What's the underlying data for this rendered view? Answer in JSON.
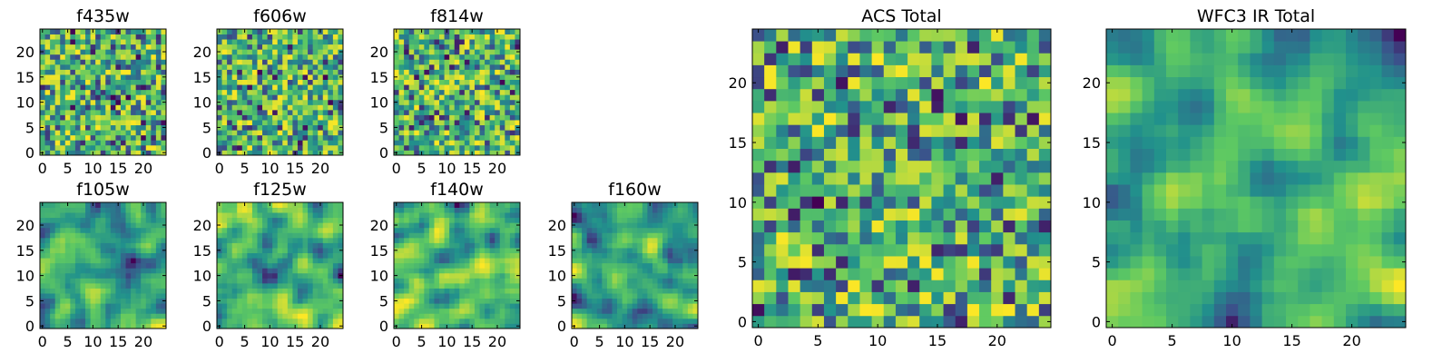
{
  "chart_data": [
    {
      "type": "heatmap",
      "title": "f435w",
      "xticks": [
        0,
        5,
        10,
        15,
        20
      ],
      "yticks": [
        0,
        5,
        10,
        15,
        20
      ],
      "xlim": [
        -0.5,
        24.5
      ],
      "ylim": [
        -0.5,
        24.5
      ],
      "grid": 25,
      "cells": "fine"
    },
    {
      "type": "heatmap",
      "title": "f606w",
      "xticks": [
        0,
        5,
        10,
        15,
        20
      ],
      "yticks": [
        0,
        5,
        10,
        15,
        20
      ],
      "xlim": [
        -0.5,
        24.5
      ],
      "ylim": [
        -0.5,
        24.5
      ],
      "grid": 25,
      "cells": "fine"
    },
    {
      "type": "heatmap",
      "title": "f814w",
      "xticks": [
        0,
        5,
        10,
        15,
        20
      ],
      "yticks": [
        0,
        5,
        10,
        15,
        20
      ],
      "xlim": [
        -0.5,
        24.5
      ],
      "ylim": [
        -0.5,
        24.5
      ],
      "grid": 25,
      "cells": "fine"
    },
    {
      "type": "heatmap",
      "title": "f105w",
      "xticks": [
        0,
        5,
        10,
        15,
        20
      ],
      "yticks": [
        0,
        5,
        10,
        15,
        20
      ],
      "xlim": [
        -0.5,
        24.5
      ],
      "ylim": [
        -0.5,
        24.5
      ],
      "grid": 25,
      "cells": "smooth"
    },
    {
      "type": "heatmap",
      "title": "f125w",
      "xticks": [
        0,
        5,
        10,
        15,
        20
      ],
      "yticks": [
        0,
        5,
        10,
        15,
        20
      ],
      "xlim": [
        -0.5,
        24.5
      ],
      "ylim": [
        -0.5,
        24.5
      ],
      "grid": 25,
      "cells": "smooth"
    },
    {
      "type": "heatmap",
      "title": "f140w",
      "xticks": [
        0,
        5,
        10,
        15,
        20
      ],
      "yticks": [
        0,
        5,
        10,
        15,
        20
      ],
      "xlim": [
        -0.5,
        24.5
      ],
      "ylim": [
        -0.5,
        24.5
      ],
      "grid": 25,
      "cells": "smooth"
    },
    {
      "type": "heatmap",
      "title": "f160w",
      "xticks": [
        0,
        5,
        10,
        15,
        20
      ],
      "yticks": [
        0,
        5,
        10,
        15,
        20
      ],
      "xlim": [
        -0.5,
        24.5
      ],
      "ylim": [
        -0.5,
        24.5
      ],
      "grid": 25,
      "cells": "smooth"
    },
    {
      "type": "heatmap",
      "title": "ACS Total",
      "xticks": [
        0,
        5,
        10,
        15,
        20
      ],
      "yticks": [
        0,
        5,
        10,
        15,
        20
      ],
      "xlim": [
        -0.5,
        24.5
      ],
      "ylim": [
        -0.5,
        24.5
      ],
      "grid": 25,
      "cells": "fine"
    },
    {
      "type": "heatmap",
      "title": "WFC3 IR Total",
      "xticks": [
        0,
        5,
        10,
        15,
        20
      ],
      "yticks": [
        0,
        5,
        10,
        15,
        20
      ],
      "xlim": [
        -0.5,
        24.5
      ],
      "ylim": [
        -0.5,
        24.5
      ],
      "grid": 25,
      "cells": "smooth"
    }
  ],
  "colormap": [
    "#440154",
    "#3b528b",
    "#21918c",
    "#5ec962",
    "#fde725"
  ]
}
